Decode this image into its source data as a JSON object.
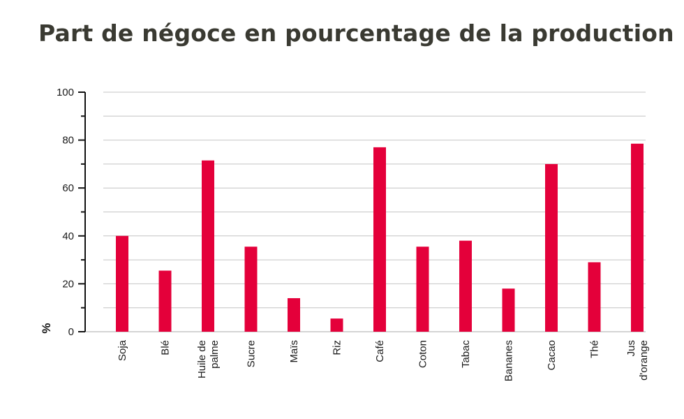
{
  "chart_data": {
    "type": "bar",
    "title": "Part de négoce en pourcentage de la production",
    "ylabel": "%",
    "xlabel": "",
    "ylim": [
      0,
      100
    ],
    "y_ticks": [
      0,
      20,
      40,
      60,
      80,
      100
    ],
    "minor_y_ticks": [
      10,
      30,
      50,
      70,
      90
    ],
    "grid": true,
    "bar_color": "#e4003a",
    "categories": [
      "Soja",
      "Blé",
      "Huile de palme",
      "Sucre",
      "Maïs",
      "Riz",
      "Café",
      "Coton",
      "Tabac",
      "Bananes",
      "Cacao",
      "Thé",
      "Jus d'orange"
    ],
    "category_lines": [
      [
        "Soja"
      ],
      [
        "Blé"
      ],
      [
        "Huile de",
        "palme"
      ],
      [
        "Sucre"
      ],
      [
        "Maïs"
      ],
      [
        "Riz"
      ],
      [
        "Café"
      ],
      [
        "Coton"
      ],
      [
        "Tabac"
      ],
      [
        "Bananes"
      ],
      [
        "Cacao"
      ],
      [
        "Thé"
      ],
      [
        "Jus",
        "d'orange"
      ]
    ],
    "values": [
      40,
      25.5,
      71.5,
      35.5,
      14,
      5.5,
      77,
      35.5,
      38,
      18,
      70,
      29,
      78.5
    ]
  }
}
